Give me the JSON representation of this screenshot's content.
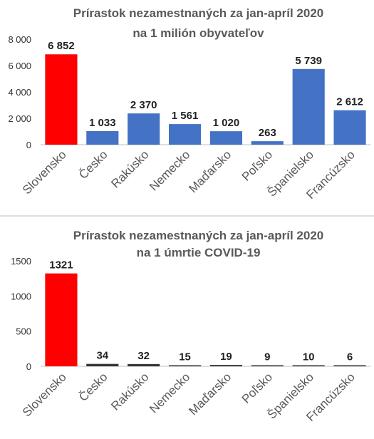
{
  "chart_data": [
    {
      "type": "bar",
      "title_lines": [
        "Prírastok nezamestnaných za jan-apríl 2020",
        "na 1 milión obyvateľov"
      ],
      "categories": [
        "Slovensko",
        "Česko",
        "Rakúsko",
        "Nemecko",
        "Maďarsko",
        "Poľsko",
        "Španielsko",
        "Francúzsko"
      ],
      "values": [
        6852,
        1033,
        2370,
        1561,
        1020,
        263,
        5739,
        2612
      ],
      "value_labels": [
        "6 852",
        "1 033",
        "2 370",
        "1 561",
        "1 020",
        "263",
        "5 739",
        "2 612"
      ],
      "ylim": [
        0,
        8000
      ],
      "yticks": [
        0,
        2000,
        4000,
        6000,
        8000
      ],
      "ytick_labels": [
        "0",
        "2 000",
        "4 000",
        "6 000",
        "8 000"
      ],
      "colors": [
        "#ff0000",
        "#4472c4",
        "#4472c4",
        "#4472c4",
        "#4472c4",
        "#4472c4",
        "#4472c4",
        "#4472c4"
      ],
      "grid": false,
      "legend": "none"
    },
    {
      "type": "bar",
      "title_lines": [
        "Prírastok nezamestnaných za jan-apríl 2020",
        "na 1 úmrtie COVID-19"
      ],
      "categories": [
        "Slovensko",
        "Česko",
        "Rakúsko",
        "Nemecko",
        "Maďarsko",
        "Poľsko",
        "Španielsko",
        "Francúzsko"
      ],
      "values": [
        1321,
        34,
        32,
        15,
        19,
        9,
        10,
        6
      ],
      "value_labels": [
        "1321",
        "34",
        "32",
        "15",
        "19",
        "9",
        "10",
        "6"
      ],
      "ylim": [
        0,
        1500
      ],
      "yticks": [
        0,
        500,
        1000,
        1500
      ],
      "ytick_labels": [
        "0",
        "500",
        "1000",
        "1500"
      ],
      "colors": [
        "#ff0000",
        "#333333",
        "#333333",
        "#333333",
        "#333333",
        "#333333",
        "#333333",
        "#333333"
      ],
      "grid": false,
      "legend": "none"
    }
  ]
}
